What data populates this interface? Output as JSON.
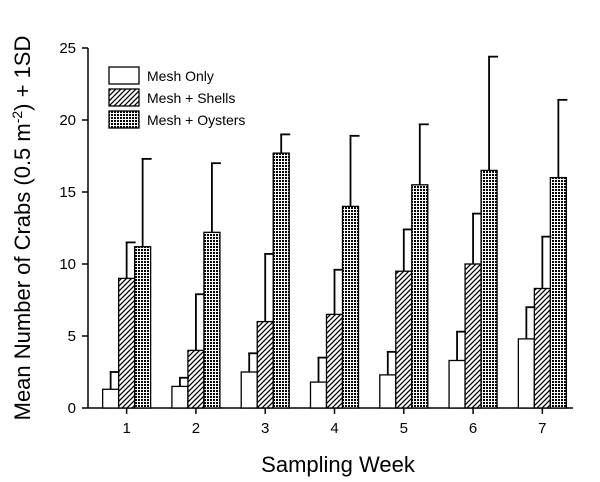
{
  "chart_data": {
    "type": "bar",
    "xlabel": "Sampling Week",
    "ylabel_parts": {
      "pre": "Mean Number of Crabs (0.5 m",
      "sup": "-2",
      "post": ") + 1SD"
    },
    "categories": [
      "1",
      "2",
      "3",
      "4",
      "5",
      "6",
      "7"
    ],
    "ylim": [
      0,
      25
    ],
    "yticks": [
      "0",
      "5",
      "10",
      "15",
      "20",
      "25"
    ],
    "legend_position": "top-left",
    "grid": false,
    "series": [
      {
        "name": "Mesh Only",
        "pattern": "white",
        "values": [
          1.3,
          1.5,
          2.5,
          1.8,
          2.3,
          3.3,
          4.8
        ],
        "sd": [
          1.2,
          0.6,
          1.3,
          1.7,
          1.6,
          2.0,
          2.2
        ]
      },
      {
        "name": "Mesh + Shells",
        "pattern": "diagonal-hatch",
        "values": [
          9.0,
          4.0,
          6.0,
          6.5,
          9.5,
          10.0,
          8.3
        ],
        "sd": [
          2.5,
          3.9,
          4.7,
          3.1,
          2.9,
          3.5,
          3.6
        ]
      },
      {
        "name": "Mesh + Oysters",
        "pattern": "dots",
        "values": [
          11.2,
          12.2,
          17.7,
          14.0,
          15.5,
          16.5,
          16.0
        ],
        "sd": [
          6.1,
          4.8,
          1.3,
          4.9,
          4.2,
          7.9,
          5.4
        ]
      }
    ]
  }
}
